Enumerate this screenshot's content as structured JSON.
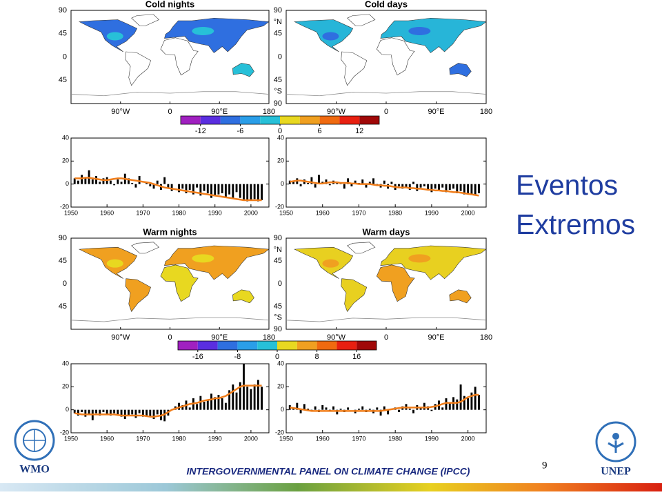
{
  "title_lines": [
    "Eventos",
    "Extremos"
  ],
  "footer": "INTERGOVERNMENTAL PANEL ON CLIMATE CHANGE (IPCC)",
  "page_number": "9",
  "logos": [
    "WMO",
    "UNEP"
  ],
  "maps": [
    {
      "title": "Cold nights",
      "land_color": "#2f6fe0",
      "accent_color": "#27c0d8",
      "xlim": [
        -180,
        180
      ],
      "ylim": [
        -90,
        90
      ],
      "xticks": [
        {
          "value": -90,
          "label": "90°W"
        },
        0,
        {
          "value": 90,
          "label": "90°E"
        },
        180
      ],
      "yticks": [
        90,
        45,
        0,
        {
          "value": -45,
          "label": "45"
        }
      ]
    },
    {
      "title": "Cold days",
      "land_color": "#27b5d8",
      "accent_color": "#2f6fe0",
      "xlim": [
        -180,
        180
      ],
      "ylim": [
        -90,
        90
      ],
      "xticks": [
        {
          "value": -90,
          "label": "90°W"
        },
        0,
        {
          "value": 90,
          "label": "90°E"
        },
        180
      ],
      "yticks": [
        90,
        {
          "value": 67,
          "label": "°N"
        },
        45,
        0,
        {
          "value": -45,
          "label": "45"
        },
        {
          "value": -67,
          "label": "°S"
        },
        {
          "value": -90,
          "label": "90"
        }
      ]
    },
    {
      "title": "Warm nights",
      "land_color": "#f0a020",
      "accent_color": "#e8d820",
      "xlim": [
        -180,
        180
      ],
      "ylim": [
        -90,
        90
      ],
      "xticks": [
        {
          "value": -90,
          "label": "90°W"
        },
        0,
        {
          "value": 90,
          "label": "90°E"
        },
        180
      ],
      "yticks": [
        90,
        45,
        0,
        {
          "value": -45,
          "label": "45"
        }
      ]
    },
    {
      "title": "Warm days",
      "land_color": "#e8d020",
      "accent_color": "#f0a020",
      "xlim": [
        -180,
        180
      ],
      "ylim": [
        -90,
        90
      ],
      "xticks": [
        {
          "value": -90,
          "label": "90°W"
        },
        0,
        {
          "value": 90,
          "label": "90°E"
        },
        180
      ],
      "yticks": [
        90,
        {
          "value": 67,
          "label": "°N"
        },
        45,
        0,
        {
          "value": -45,
          "label": "45"
        },
        {
          "value": -67,
          "label": "°S"
        },
        {
          "value": -90,
          "label": "90"
        }
      ]
    }
  ],
  "colorbars": [
    {
      "lim": [
        -15,
        15
      ],
      "ticks": [
        -12,
        -6,
        0,
        6,
        12
      ],
      "colors": [
        "#a020c0",
        "#5a2ee0",
        "#2f6fe0",
        "#2a9ee8",
        "#27c0d8",
        "#e8d820",
        "#f0a020",
        "#f06a10",
        "#e82010",
        "#a00808"
      ]
    },
    {
      "lim": [
        -20,
        20
      ],
      "ticks": [
        -16,
        -8,
        0,
        8,
        16
      ],
      "colors": [
        "#a020c0",
        "#5a2ee0",
        "#2f6fe0",
        "#2a9ee8",
        "#27c0d8",
        "#e8d820",
        "#f0a020",
        "#f06a10",
        "#e82010",
        "#a00808"
      ]
    }
  ],
  "chart_data": [
    {
      "type": "bar",
      "color": "#000000",
      "trend_color": "#f07d1a",
      "xlim": [
        1950,
        2005
      ],
      "ylim": [
        -20,
        40
      ],
      "xticks": [
        1950,
        1960,
        1970,
        1980,
        1990,
        2000
      ],
      "yticks": [
        -20,
        0,
        20,
        40
      ],
      "x": [
        1951,
        1952,
        1953,
        1954,
        1955,
        1956,
        1957,
        1958,
        1959,
        1960,
        1961,
        1962,
        1963,
        1964,
        1965,
        1966,
        1967,
        1968,
        1969,
        1970,
        1971,
        1972,
        1973,
        1974,
        1975,
        1976,
        1977,
        1978,
        1979,
        1980,
        1981,
        1982,
        1983,
        1984,
        1985,
        1986,
        1987,
        1988,
        1989,
        1990,
        1991,
        1992,
        1993,
        1994,
        1995,
        1996,
        1997,
        1998,
        1999,
        2000,
        2001,
        2002,
        2003
      ],
      "values": [
        5,
        3,
        8,
        6,
        12,
        4,
        7,
        2,
        5,
        6,
        3,
        -1,
        4,
        2,
        9,
        5,
        1,
        -3,
        7,
        0,
        2,
        -2,
        -4,
        3,
        -5,
        6,
        -3,
        -6,
        0,
        -7,
        -4,
        -8,
        -5,
        -9,
        -3,
        -10,
        -6,
        -8,
        -12,
        -10,
        -9,
        -8,
        -11,
        -9,
        -13,
        -7,
        -12,
        -14,
        -15,
        -14,
        -13,
        -15,
        -14
      ],
      "trend_values": [
        5,
        5,
        5,
        5.5,
        5.5,
        5,
        4.5,
        4,
        3.5,
        3.5,
        4,
        4.5,
        5,
        5,
        4.5,
        4,
        3.5,
        3,
        2.5,
        2,
        1.5,
        1,
        0,
        -1,
        -2,
        -3,
        -3.5,
        -4,
        -4.5,
        -5,
        -5.5,
        -6,
        -6.5,
        -7,
        -7.5,
        -8,
        -8.5,
        -9,
        -9.5,
        -10,
        -10.5,
        -11,
        -11.5,
        -12,
        -12.5,
        -13,
        -13.5,
        -14,
        -14,
        -14,
        -14,
        -14,
        -14
      ]
    },
    {
      "type": "bar",
      "color": "#000000",
      "trend_color": "#f07d1a",
      "xlim": [
        1950,
        2005
      ],
      "ylim": [
        -20,
        40
      ],
      "xticks": [
        1950,
        1960,
        1970,
        1980,
        1990,
        2000
      ],
      "yticks": [
        -20,
        0,
        20,
        40
      ],
      "x": [
        1951,
        1952,
        1953,
        1954,
        1955,
        1956,
        1957,
        1958,
        1959,
        1960,
        1961,
        1962,
        1963,
        1964,
        1965,
        1966,
        1967,
        1968,
        1969,
        1970,
        1971,
        1972,
        1973,
        1974,
        1975,
        1976,
        1977,
        1978,
        1979,
        1980,
        1981,
        1982,
        1983,
        1984,
        1985,
        1986,
        1987,
        1988,
        1989,
        1990,
        1991,
        1992,
        1993,
        1994,
        1995,
        1996,
        1997,
        1998,
        1999,
        2000,
        2001,
        2002,
        2003
      ],
      "values": [
        3,
        2,
        5,
        -2,
        4,
        1,
        6,
        -3,
        8,
        2,
        4,
        -1,
        3,
        2,
        1,
        -4,
        5,
        -2,
        3,
        1,
        4,
        -3,
        2,
        5,
        -1,
        -3,
        3,
        -4,
        2,
        -5,
        -2,
        -4,
        -3,
        -5,
        2,
        -6,
        -3,
        -2,
        -5,
        -7,
        -4,
        -6,
        -3,
        -7,
        -5,
        -4,
        -8,
        -6,
        -9,
        -8,
        -9,
        -10,
        -8
      ],
      "trend_values": [
        2,
        2.5,
        3,
        3,
        2.5,
        2,
        1.5,
        1,
        0.5,
        0.5,
        1,
        1.5,
        1.5,
        1.5,
        1,
        1,
        1,
        0.5,
        0.5,
        0,
        0,
        0,
        0,
        -0.5,
        -1,
        -1,
        -1.5,
        -1.5,
        -2,
        -2.5,
        -3,
        -3,
        -3,
        -3.5,
        -3.5,
        -4,
        -4,
        -4.5,
        -5,
        -5,
        -5.5,
        -5.5,
        -6,
        -6,
        -6.5,
        -7,
        -7,
        -7.5,
        -8,
        -8.5,
        -9,
        -9.5,
        -10
      ]
    },
    {
      "type": "bar",
      "color": "#000000",
      "trend_color": "#f07d1a",
      "xlim": [
        1950,
        2005
      ],
      "ylim": [
        -20,
        40
      ],
      "xticks": [
        1950,
        1960,
        1970,
        1980,
        1990,
        2000
      ],
      "yticks": [
        -20,
        0,
        20,
        40
      ],
      "x": [
        1951,
        1952,
        1953,
        1954,
        1955,
        1956,
        1957,
        1958,
        1959,
        1960,
        1961,
        1962,
        1963,
        1964,
        1965,
        1966,
        1967,
        1968,
        1969,
        1970,
        1971,
        1972,
        1973,
        1974,
        1975,
        1976,
        1977,
        1978,
        1979,
        1980,
        1981,
        1982,
        1983,
        1984,
        1985,
        1986,
        1987,
        1988,
        1989,
        1990,
        1991,
        1992,
        1993,
        1994,
        1995,
        1996,
        1997,
        1998,
        1999,
        2000,
        2001,
        2002,
        2003
      ],
      "values": [
        -3,
        -5,
        -2,
        -6,
        -4,
        -9,
        -3,
        -5,
        -2,
        -4,
        -5,
        -3,
        -4,
        -6,
        -8,
        -5,
        -4,
        -7,
        -3,
        -6,
        -5,
        -6,
        -8,
        -4,
        -9,
        -10,
        -5,
        0,
        3,
        6,
        4,
        8,
        2,
        10,
        5,
        12,
        7,
        9,
        14,
        11,
        13,
        10,
        6,
        17,
        22,
        15,
        24,
        40,
        20,
        18,
        22,
        26,
        20
      ],
      "trend_values": [
        -3,
        -3.5,
        -4,
        -4,
        -4,
        -4,
        -4,
        -4,
        -4,
        -4,
        -4,
        -4,
        -4.5,
        -5,
        -5,
        -5,
        -5,
        -5,
        -5,
        -5,
        -5.5,
        -6,
        -6,
        -5.5,
        -5,
        -4,
        -2,
        0,
        1,
        2,
        3,
        4,
        5,
        5.5,
        6,
        7,
        8,
        8.5,
        9,
        10,
        10,
        11,
        12,
        14,
        16,
        18,
        20,
        21,
        21,
        21,
        21,
        21,
        21
      ]
    },
    {
      "type": "bar",
      "color": "#000000",
      "trend_color": "#f07d1a",
      "xlim": [
        1950,
        2005
      ],
      "ylim": [
        -20,
        40
      ],
      "xticks": [
        1950,
        1960,
        1970,
        1980,
        1990,
        2000
      ],
      "yticks": [
        -20,
        0,
        20,
        40
      ],
      "x": [
        1951,
        1952,
        1953,
        1954,
        1955,
        1956,
        1957,
        1958,
        1959,
        1960,
        1961,
        1962,
        1963,
        1964,
        1965,
        1966,
        1967,
        1968,
        1969,
        1970,
        1971,
        1972,
        1973,
        1974,
        1975,
        1976,
        1977,
        1978,
        1979,
        1980,
        1981,
        1982,
        1983,
        1984,
        1985,
        1986,
        1987,
        1988,
        1989,
        1990,
        1991,
        1992,
        1993,
        1994,
        1995,
        1996,
        1997,
        1998,
        1999,
        2000,
        2001,
        2002,
        2003
      ],
      "values": [
        4,
        2,
        6,
        -3,
        5,
        1,
        -1,
        3,
        -2,
        4,
        2,
        -1,
        3,
        -4,
        1,
        -2,
        2,
        0,
        -3,
        1,
        3,
        -2,
        1,
        -3,
        2,
        -5,
        3,
        -4,
        1,
        2,
        -2,
        3,
        5,
        1,
        -3,
        4,
        2,
        6,
        3,
        -1,
        5,
        8,
        2,
        10,
        6,
        11,
        9,
        22,
        12,
        10,
        15,
        20,
        13
      ],
      "trend_values": [
        2,
        1.5,
        1,
        0.5,
        0,
        -0.5,
        -1,
        -1,
        -1,
        -1,
        -1,
        -1,
        -1,
        -1,
        -1,
        -1,
        -1,
        -1,
        -1,
        -1,
        -1,
        -1,
        -1,
        -1,
        -1,
        -1,
        -0.5,
        0,
        0.5,
        1,
        1.5,
        2,
        2,
        2,
        2,
        2,
        2,
        2,
        2,
        2.5,
        3,
        4,
        5,
        6,
        6,
        6,
        6,
        7,
        9,
        11,
        12,
        13,
        13
      ]
    }
  ]
}
